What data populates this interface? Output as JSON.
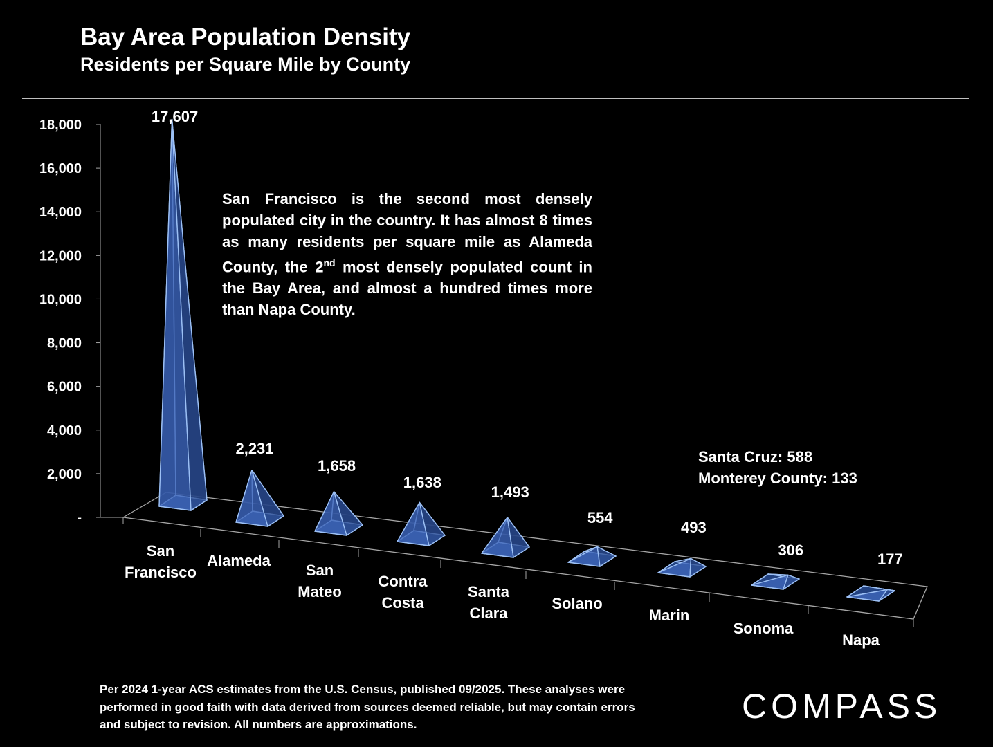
{
  "header": {
    "title": "Bay Area Population Density",
    "subtitle": "Residents per Square Mile by County"
  },
  "chart_data": {
    "type": "bar",
    "style": "3d-pyramid",
    "title": "Bay Area Population Density",
    "subtitle": "Residents per Square Mile by County",
    "categories": [
      "San Francisco",
      "Alameda",
      "San Mateo",
      "Contra Costa",
      "Santa Clara",
      "Solano",
      "Marin",
      "Sonoma",
      "Napa"
    ],
    "category_lines": [
      [
        "San",
        "Francisco"
      ],
      [
        "Alameda"
      ],
      [
        "San",
        "Mateo"
      ],
      [
        "Contra",
        "Costa"
      ],
      [
        "Santa",
        "Clara"
      ],
      [
        "Solano"
      ],
      [
        "Marin"
      ],
      [
        "Sonoma"
      ],
      [
        "Napa"
      ]
    ],
    "values": [
      17607,
      2231,
      1658,
      1638,
      1493,
      554,
      493,
      306,
      177
    ],
    "data_labels": [
      "17,607",
      "2,231",
      "1,658",
      "1,638",
      "1,493",
      "554",
      "493",
      "306",
      "177"
    ],
    "ylim": [
      0,
      18000
    ],
    "y_ticks": [
      0,
      2000,
      4000,
      6000,
      8000,
      10000,
      12000,
      14000,
      16000,
      18000
    ],
    "y_tick_labels": [
      "-",
      "2,000",
      "4,000",
      "6,000",
      "8,000",
      "10,000",
      "12,000",
      "14,000",
      "16,000",
      "18,000"
    ],
    "xlabel": "",
    "ylabel": "",
    "bar_color": "#2f4f8f",
    "edge_color": "#8fb4ee"
  },
  "annotation": {
    "before_sup": "San Francisco is the second most densely populated city in the country. It has almost 8 times as many residents per square mile as Alameda County, the 2",
    "sup": "nd",
    "after_sup": " most densely populated count in the Bay Area, and almost a hundred times more than Napa County."
  },
  "side_note": {
    "line1": "Santa Cruz:  588",
    "line2": "Monterey County:  133"
  },
  "footer": "Per 2024 1-year ACS estimates from the U.S. Census, published 09/2025. These analyses were performed in good faith with data derived from sources deemed reliable, but may contain errors and subject to revision. All numbers are approximations.",
  "logo": "COMPASS"
}
